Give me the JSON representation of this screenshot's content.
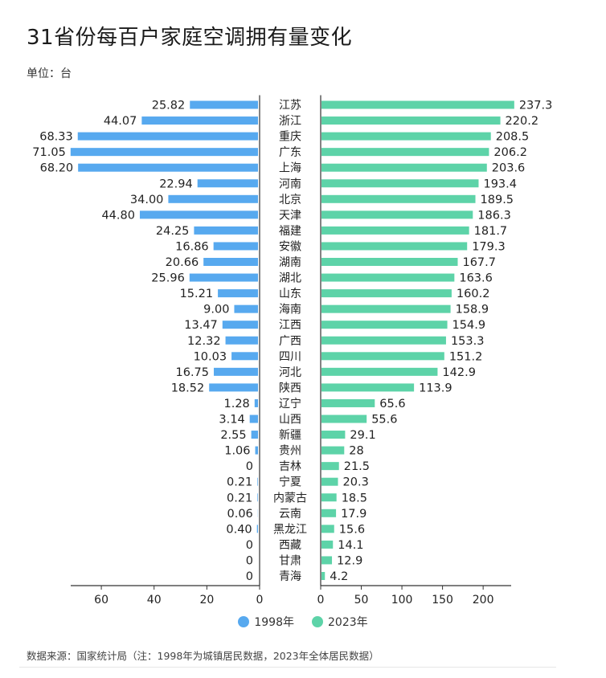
{
  "header": {
    "title": "31省份每百户家庭空调拥有量变化",
    "unit": "单位：台"
  },
  "footer": {
    "source": "数据来源：国家统计局（注：1998年为城镇居民数据，2023年全体居民数据）"
  },
  "colors": {
    "series_1998": "#57a9ef",
    "series_2023": "#5dd3a8",
    "axis": "#333333"
  },
  "chart_data": {
    "type": "bar",
    "orientation": "horizontal-butterfly",
    "categories": [
      "江苏",
      "浙江",
      "重庆",
      "广东",
      "上海",
      "河南",
      "北京",
      "天津",
      "福建",
      "安徽",
      "湖南",
      "湖北",
      "山东",
      "海南",
      "江西",
      "广西",
      "四川",
      "河北",
      "陕西",
      "辽宁",
      "山西",
      "新疆",
      "贵州",
      "吉林",
      "宁夏",
      "内蒙古",
      "云南",
      "黑龙江",
      "西藏",
      "甘肃",
      "青海"
    ],
    "series": [
      {
        "name": "1998年",
        "values": [
          25.82,
          44.07,
          68.33,
          71.05,
          68.2,
          22.94,
          34.0,
          44.8,
          24.25,
          16.86,
          20.66,
          25.96,
          15.21,
          9.0,
          13.47,
          12.32,
          10.03,
          16.75,
          18.52,
          1.28,
          3.14,
          2.55,
          1.06,
          0,
          0.21,
          0.21,
          0.06,
          0.4,
          0,
          0,
          0
        ],
        "labels": [
          "25.82",
          "44.07",
          "68.33",
          "71.05",
          "68.20",
          "22.94",
          "34.00",
          "44.80",
          "24.25",
          "16.86",
          "20.66",
          "25.96",
          "15.21",
          "9.00",
          "13.47",
          "12.32",
          "10.03",
          "16.75",
          "18.52",
          "1.28",
          "3.14",
          "2.55",
          "1.06",
          "0",
          "0.21",
          "0.21",
          "0.06",
          "0.40",
          "0",
          "0",
          "0"
        ]
      },
      {
        "name": "2023年",
        "values": [
          237.3,
          220.2,
          208.5,
          206.2,
          203.6,
          193.4,
          189.5,
          186.3,
          181.7,
          179.3,
          167.7,
          163.6,
          160.2,
          158.9,
          154.9,
          153.3,
          151.2,
          142.9,
          113.9,
          65.6,
          55.6,
          29.1,
          28,
          21.5,
          20.3,
          18.5,
          17.9,
          15.6,
          14.1,
          12.9,
          4.2
        ],
        "labels": [
          "237.3",
          "220.2",
          "208.5",
          "206.2",
          "203.6",
          "193.4",
          "189.5",
          "186.3",
          "181.7",
          "179.3",
          "167.7",
          "163.6",
          "160.2",
          "158.9",
          "154.9",
          "153.3",
          "151.2",
          "142.9",
          "113.9",
          "65.6",
          "55.6",
          "29.1",
          "28",
          "21.5",
          "20.3",
          "18.5",
          "17.9",
          "15.6",
          "14.1",
          "12.9",
          "4.2"
        ]
      }
    ],
    "left_axis": {
      "ticks": [
        "60",
        "40",
        "20",
        "0"
      ],
      "tick_values": [
        60,
        40,
        20,
        0
      ],
      "range": [
        0,
        72
      ]
    },
    "right_axis": {
      "ticks": [
        "0",
        "50",
        "100",
        "150",
        "200"
      ],
      "tick_values": [
        0,
        50,
        100,
        150,
        200
      ],
      "range": [
        0,
        237
      ]
    },
    "legend": {
      "placement": "bottom-center"
    }
  }
}
